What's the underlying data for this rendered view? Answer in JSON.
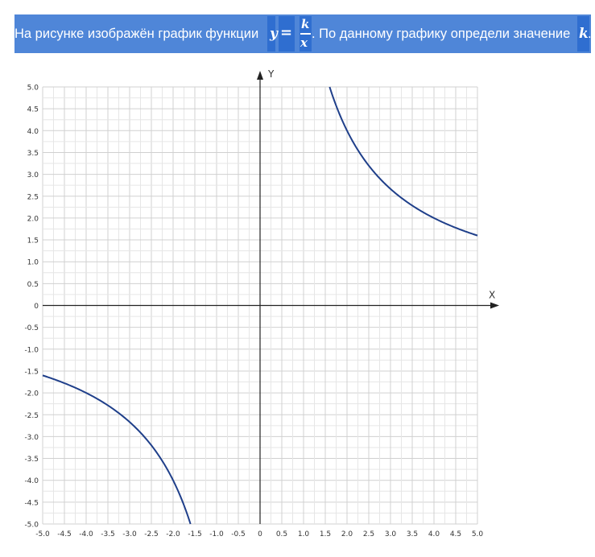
{
  "problem": {
    "text_before": "На рисунке изображён график функции",
    "y_var": "y",
    "equals": "=",
    "numerator": "k",
    "denominator": "x",
    "text_after": ". По данному графику определи значение",
    "k_var": "k",
    "end_punct": "."
  },
  "chart_data": {
    "type": "line",
    "function": "y = k/x",
    "xlabel": "X",
    "ylabel": "Y",
    "xlim": [
      -5,
      5
    ],
    "ylim": [
      -5,
      5
    ],
    "grid": true,
    "grid_step": 0.25,
    "x_ticks": [
      "-5.0",
      "-4.5",
      "-4.0",
      "-3.5",
      "-3.0",
      "-2.5",
      "-2.0",
      "-1.5",
      "-1.0",
      "-0.5",
      "0",
      "0.5",
      "1.0",
      "1.5",
      "2.0",
      "2.5",
      "3.0",
      "3.5",
      "4.0",
      "4.5",
      "5.0"
    ],
    "y_ticks": [
      "5.0",
      "4.5",
      "4.0",
      "3.5",
      "3.0",
      "2.5",
      "2.0",
      "1.5",
      "1.0",
      "0.5",
      "0",
      "-0.5",
      "-1.0",
      "-1.5",
      "-2.0",
      "-2.5",
      "-3.0",
      "-3.5",
      "-4.0",
      "-4.5",
      "-5.0"
    ],
    "series": [
      {
        "k": 8,
        "x_range": [
          1.6,
          5.0
        ],
        "color": "#1f3f8a"
      },
      {
        "k": 8,
        "x_range": [
          -5.0,
          -1.6
        ],
        "color": "#1f3f8a"
      }
    ]
  }
}
